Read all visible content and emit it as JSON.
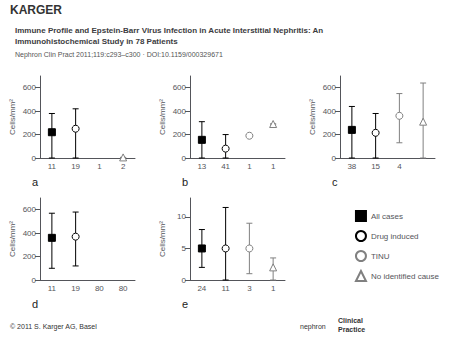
{
  "title": "Immune Profile and Epstein-Barr Virus Infection in Acute Interstitial Nephritis: An\nImmunohistochemical Study in 78 Patients",
  "subtitle": "Nephron Clin Pract 2011;119:c293–c300 · DOI:10.1159/000329671",
  "annotations": [
    "KARGER",
    "© 2011 S. Karger AG, Basel",
    "nephron",
    "Clinical\nPractice"
  ],
  "legend": "lower right",
  "chart_data": [
    {
      "type": "scatter",
      "title": "a",
      "ylabel": "Cells/mm²",
      "grid": false,
      "categories": [
        "11",
        "19",
        "1",
        "2"
      ],
      "ylim": [
        0,
        700
      ],
      "yticks": [
        0,
        200,
        400,
        600
      ],
      "series": [
        {
          "name": "All cases",
          "color": "black",
          "marker": "square",
          "values": [
            220,
            null,
            null,
            null
          ],
          "lower": [
            0,
            null,
            null,
            null
          ],
          "upper": [
            380,
            null,
            null,
            null
          ]
        },
        {
          "name": "Drug induced",
          "color": "black",
          "marker": "open_circle",
          "values": [
            null,
            250,
            null,
            null
          ],
          "lower": [
            null,
            0,
            null,
            null
          ],
          "upper": [
            null,
            420,
            null,
            null
          ]
        },
        {
          "name": "TINU",
          "color": "gray",
          "marker": "open_circle",
          "values": [
            null,
            null,
            null,
            null
          ],
          "lower": [
            null,
            null,
            null,
            null
          ],
          "upper": [
            null,
            null,
            null,
            null
          ]
        },
        {
          "name": "No identified cause",
          "color": "gray",
          "marker": "open_triangle",
          "values": [
            null,
            null,
            null,
            5
          ],
          "lower": [
            null,
            null,
            null,
            5
          ],
          "upper": [
            null,
            null,
            null,
            5
          ]
        }
      ]
    },
    {
      "type": "scatter",
      "title": "b",
      "ylabel": "Cells/mm²",
      "grid": false,
      "categories": [
        "13",
        "41",
        "1",
        "1"
      ],
      "ylim": [
        0,
        700
      ],
      "yticks": [
        0,
        200,
        400,
        600
      ],
      "series": [
        {
          "name": "All cases",
          "color": "black",
          "marker": "square",
          "values": [
            155,
            null,
            null,
            null
          ],
          "lower": [
            0,
            null,
            null,
            null
          ],
          "upper": [
            310,
            null,
            null,
            null
          ]
        },
        {
          "name": "Drug induced",
          "color": "black",
          "marker": "open_circle",
          "values": [
            null,
            80,
            null,
            null
          ],
          "lower": [
            null,
            0,
            null,
            null
          ],
          "upper": [
            null,
            200,
            null,
            null
          ]
        },
        {
          "name": "TINU",
          "color": "gray",
          "marker": "open_circle",
          "values": [
            null,
            null,
            190,
            null
          ],
          "lower": [
            null,
            null,
            190,
            null
          ],
          "upper": [
            null,
            null,
            190,
            null
          ]
        },
        {
          "name": "No identified cause",
          "color": "gray",
          "marker": "open_triangle",
          "values": [
            null,
            null,
            null,
            290
          ],
          "lower": [
            null,
            null,
            null,
            290
          ],
          "upper": [
            null,
            null,
            null,
            290
          ]
        }
      ]
    },
    {
      "type": "scatter",
      "title": "c",
      "ylabel": "Cells/mm²",
      "grid": false,
      "categories": [
        "38",
        "15",
        "4",
        null
      ],
      "ylim": [
        0,
        700
      ],
      "yticks": [
        0,
        200,
        400,
        600
      ],
      "series": [
        {
          "name": "All cases",
          "color": "black",
          "marker": "square",
          "values": [
            240,
            null,
            null,
            null
          ],
          "lower": [
            0,
            null,
            null,
            null
          ],
          "upper": [
            440,
            null,
            null,
            null
          ]
        },
        {
          "name": "Drug induced",
          "color": "black",
          "marker": "open_circle",
          "values": [
            null,
            215,
            null,
            null
          ],
          "lower": [
            null,
            0,
            null,
            null
          ],
          "upper": [
            null,
            380,
            null,
            null
          ]
        },
        {
          "name": "TINU",
          "color": "gray",
          "marker": "open_circle",
          "values": [
            null,
            null,
            360,
            null
          ],
          "lower": [
            null,
            null,
            130,
            null
          ],
          "upper": [
            null,
            null,
            550,
            null
          ]
        },
        {
          "name": "No identified cause",
          "color": "gray",
          "marker": "open_triangle",
          "values": [
            null,
            null,
            null,
            310
          ],
          "lower": [
            null,
            null,
            null,
            0
          ],
          "upper": [
            null,
            null,
            null,
            640
          ]
        }
      ]
    },
    {
      "type": "scatter",
      "title": "d",
      "ylabel": "Cells/mm²",
      "grid": false,
      "categories": [
        "11",
        "19",
        "80",
        "80"
      ],
      "ylim": [
        0,
        700
      ],
      "yticks": [
        0,
        200,
        400,
        600
      ],
      "series": [
        {
          "name": "All cases",
          "color": "black",
          "marker": "square",
          "values": [
            360,
            null,
            null,
            null
          ],
          "lower": [
            100,
            null,
            null,
            null
          ],
          "upper": [
            570,
            null,
            null,
            null
          ]
        },
        {
          "name": "Drug induced",
          "color": "black",
          "marker": "open_circle",
          "values": [
            null,
            370,
            null,
            null
          ],
          "lower": [
            null,
            120,
            null,
            null
          ],
          "upper": [
            null,
            580,
            null,
            null
          ]
        },
        {
          "name": "TINU",
          "color": "gray",
          "marker": "open_circle",
          "values": [
            null,
            null,
            null,
            null
          ],
          "lower": [
            null,
            null,
            null,
            null
          ],
          "upper": [
            null,
            null,
            null,
            null
          ]
        },
        {
          "name": "No identified cause",
          "color": "gray",
          "marker": "open_triangle",
          "values": [
            null,
            null,
            null,
            null
          ],
          "lower": [
            null,
            null,
            null,
            null
          ],
          "upper": [
            null,
            null,
            null,
            null
          ]
        }
      ]
    },
    {
      "type": "scatter",
      "title": "e",
      "ylabel": "Cells/mm²",
      "grid": false,
      "categories": [
        "24",
        "11",
        "3",
        "1"
      ],
      "ylim": [
        0,
        13
      ],
      "yticks": [
        0,
        5,
        10
      ],
      "series": [
        {
          "name": "All cases",
          "color": "black",
          "marker": "square",
          "values": [
            5,
            null,
            null,
            null
          ],
          "lower": [
            2,
            null,
            null,
            null
          ],
          "upper": [
            8,
            null,
            null,
            null
          ]
        },
        {
          "name": "Drug induced",
          "color": "black",
          "marker": "open_circle",
          "values": [
            null,
            5,
            null,
            null
          ],
          "lower": [
            null,
            0,
            null,
            null
          ],
          "upper": [
            null,
            11.5,
            null,
            null
          ]
        },
        {
          "name": "TINU",
          "color": "gray",
          "marker": "open_circle",
          "values": [
            null,
            null,
            5,
            null
          ],
          "lower": [
            null,
            null,
            1,
            null
          ],
          "upper": [
            null,
            null,
            9,
            null
          ]
        },
        {
          "name": "No identified cause",
          "color": "gray",
          "marker": "open_triangle",
          "values": [
            null,
            null,
            null,
            2
          ],
          "lower": [
            null,
            null,
            null,
            0
          ],
          "upper": [
            null,
            null,
            null,
            3.5
          ]
        }
      ]
    }
  ]
}
